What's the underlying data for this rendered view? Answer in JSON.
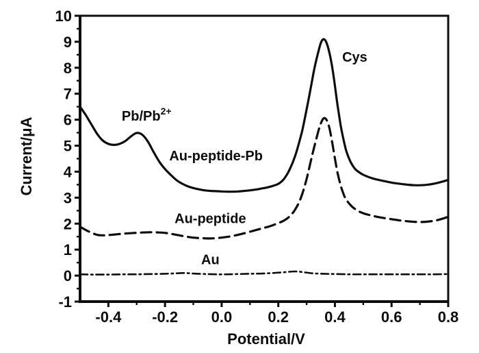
{
  "figure": {
    "background": "#ffffff",
    "ink_color": "#0d0d0d"
  },
  "chart_data": {
    "type": "line",
    "title": "",
    "xlabel": "Potential/V",
    "ylabel": "Current/μA",
    "xlim": [
      -0.5,
      0.8
    ],
    "ylim": [
      -1,
      10
    ],
    "grid": false,
    "frame": true,
    "legend_position": "none (inline curve labels)",
    "x_major_ticks": [
      -0.4,
      -0.2,
      0.0,
      0.2,
      0.4,
      0.6,
      0.8
    ],
    "x_tick_labels": [
      "-0.4",
      "-0.2",
      "0.0",
      "0.2",
      "0.4",
      "0.6",
      "0.8"
    ],
    "x_minor_ticks": [
      -0.3,
      -0.1,
      0.1,
      0.3,
      0.5,
      0.7
    ],
    "y_major_ticks": [
      -1,
      0,
      1,
      2,
      3,
      4,
      5,
      6,
      7,
      8,
      9,
      10
    ],
    "y_tick_labels": [
      "-1",
      "0",
      "1",
      "2",
      "3",
      "4",
      "5",
      "6",
      "7",
      "8",
      "9",
      "10"
    ],
    "y_minor_ticks": [
      -0.5,
      0.5,
      1.5,
      2.5,
      3.5,
      4.5,
      5.5,
      6.5,
      7.5,
      8.5,
      9.5
    ],
    "series": [
      {
        "name": "Au-peptide-Pb",
        "line_style": "solid",
        "stroke_width": 3.2,
        "peaks": [
          {
            "label": "Pb/Pb2+",
            "x": -0.3,
            "y": 5.5
          },
          {
            "label": "Cys",
            "x": 0.36,
            "y": 9.1
          }
        ],
        "points": [
          [
            -0.5,
            6.5
          ],
          [
            -0.48,
            6.18
          ],
          [
            -0.46,
            5.82
          ],
          [
            -0.44,
            5.46
          ],
          [
            -0.42,
            5.2
          ],
          [
            -0.4,
            5.07
          ],
          [
            -0.38,
            5.03
          ],
          [
            -0.36,
            5.07
          ],
          [
            -0.34,
            5.18
          ],
          [
            -0.32,
            5.36
          ],
          [
            -0.3,
            5.49
          ],
          [
            -0.28,
            5.42
          ],
          [
            -0.26,
            5.15
          ],
          [
            -0.24,
            4.75
          ],
          [
            -0.22,
            4.38
          ],
          [
            -0.2,
            4.1
          ],
          [
            -0.18,
            3.88
          ],
          [
            -0.16,
            3.68
          ],
          [
            -0.14,
            3.54
          ],
          [
            -0.12,
            3.44
          ],
          [
            -0.1,
            3.37
          ],
          [
            -0.08,
            3.32
          ],
          [
            -0.06,
            3.28
          ],
          [
            -0.04,
            3.26
          ],
          [
            -0.02,
            3.25
          ],
          [
            0.0,
            3.24
          ],
          [
            0.02,
            3.23
          ],
          [
            0.04,
            3.23
          ],
          [
            0.06,
            3.24
          ],
          [
            0.08,
            3.26
          ],
          [
            0.1,
            3.28
          ],
          [
            0.12,
            3.31
          ],
          [
            0.14,
            3.35
          ],
          [
            0.16,
            3.39
          ],
          [
            0.18,
            3.45
          ],
          [
            0.2,
            3.53
          ],
          [
            0.22,
            3.72
          ],
          [
            0.24,
            4.08
          ],
          [
            0.26,
            4.62
          ],
          [
            0.28,
            5.38
          ],
          [
            0.29,
            5.85
          ],
          [
            0.3,
            6.4
          ],
          [
            0.31,
            6.95
          ],
          [
            0.32,
            7.55
          ],
          [
            0.33,
            8.1
          ],
          [
            0.34,
            8.55
          ],
          [
            0.35,
            8.95
          ],
          [
            0.36,
            9.1
          ],
          [
            0.37,
            8.97
          ],
          [
            0.38,
            8.6
          ],
          [
            0.39,
            8.05
          ],
          [
            0.4,
            7.3
          ],
          [
            0.41,
            6.5
          ],
          [
            0.42,
            5.8
          ],
          [
            0.43,
            5.25
          ],
          [
            0.44,
            4.8
          ],
          [
            0.45,
            4.5
          ],
          [
            0.46,
            4.28
          ],
          [
            0.47,
            4.12
          ],
          [
            0.48,
            4.02
          ],
          [
            0.5,
            3.88
          ],
          [
            0.53,
            3.75
          ],
          [
            0.56,
            3.67
          ],
          [
            0.6,
            3.58
          ],
          [
            0.64,
            3.52
          ],
          [
            0.68,
            3.48
          ],
          [
            0.72,
            3.49
          ],
          [
            0.76,
            3.56
          ],
          [
            0.8,
            3.68
          ]
        ]
      },
      {
        "name": "Au-peptide",
        "line_style": "dashed",
        "stroke_width": 3.2,
        "peaks": [
          {
            "label": "Cys",
            "x": 0.36,
            "y": 6.05
          }
        ],
        "points": [
          [
            -0.5,
            1.88
          ],
          [
            -0.47,
            1.7
          ],
          [
            -0.44,
            1.57
          ],
          [
            -0.42,
            1.55
          ],
          [
            -0.4,
            1.56
          ],
          [
            -0.37,
            1.59
          ],
          [
            -0.34,
            1.62
          ],
          [
            -0.31,
            1.64
          ],
          [
            -0.28,
            1.66
          ],
          [
            -0.25,
            1.67
          ],
          [
            -0.22,
            1.66
          ],
          [
            -0.19,
            1.63
          ],
          [
            -0.16,
            1.57
          ],
          [
            -0.13,
            1.51
          ],
          [
            -0.1,
            1.46
          ],
          [
            -0.07,
            1.44
          ],
          [
            -0.04,
            1.43
          ],
          [
            -0.01,
            1.45
          ],
          [
            0.02,
            1.49
          ],
          [
            0.05,
            1.55
          ],
          [
            0.08,
            1.63
          ],
          [
            0.11,
            1.72
          ],
          [
            0.14,
            1.81
          ],
          [
            0.17,
            1.9
          ],
          [
            0.2,
            2.02
          ],
          [
            0.22,
            2.12
          ],
          [
            0.24,
            2.28
          ],
          [
            0.26,
            2.55
          ],
          [
            0.28,
            3.0
          ],
          [
            0.3,
            3.72
          ],
          [
            0.32,
            4.65
          ],
          [
            0.34,
            5.5
          ],
          [
            0.35,
            5.85
          ],
          [
            0.36,
            6.05
          ],
          [
            0.37,
            6.0
          ],
          [
            0.38,
            5.7
          ],
          [
            0.39,
            5.15
          ],
          [
            0.4,
            4.5
          ],
          [
            0.41,
            3.92
          ],
          [
            0.42,
            3.48
          ],
          [
            0.43,
            3.15
          ],
          [
            0.44,
            2.92
          ],
          [
            0.46,
            2.66
          ],
          [
            0.48,
            2.5
          ],
          [
            0.5,
            2.4
          ],
          [
            0.53,
            2.31
          ],
          [
            0.56,
            2.24
          ],
          [
            0.6,
            2.17
          ],
          [
            0.64,
            2.11
          ],
          [
            0.68,
            2.07
          ],
          [
            0.72,
            2.07
          ],
          [
            0.76,
            2.13
          ],
          [
            0.8,
            2.26
          ]
        ]
      },
      {
        "name": "Au",
        "line_style": "dashdot",
        "stroke_width": 2.6,
        "peaks": [],
        "points": [
          [
            -0.5,
            0.05
          ],
          [
            -0.45,
            0.04
          ],
          [
            -0.4,
            0.04
          ],
          [
            -0.35,
            0.05
          ],
          [
            -0.3,
            0.05
          ],
          [
            -0.25,
            0.06
          ],
          [
            -0.2,
            0.07
          ],
          [
            -0.16,
            0.09
          ],
          [
            -0.13,
            0.1
          ],
          [
            -0.1,
            0.08
          ],
          [
            -0.06,
            0.06
          ],
          [
            -0.02,
            0.05
          ],
          [
            0.02,
            0.05
          ],
          [
            0.06,
            0.06
          ],
          [
            0.1,
            0.07
          ],
          [
            0.14,
            0.08
          ],
          [
            0.18,
            0.1
          ],
          [
            0.22,
            0.13
          ],
          [
            0.26,
            0.16
          ],
          [
            0.29,
            0.13
          ],
          [
            0.32,
            0.09
          ],
          [
            0.36,
            0.07
          ],
          [
            0.4,
            0.06
          ],
          [
            0.45,
            0.05
          ],
          [
            0.5,
            0.05
          ],
          [
            0.55,
            0.05
          ],
          [
            0.6,
            0.05
          ],
          [
            0.65,
            0.05
          ],
          [
            0.7,
            0.05
          ],
          [
            0.75,
            0.05
          ],
          [
            0.8,
            0.06
          ]
        ]
      }
    ],
    "annotations": [
      {
        "text": "Pb/Pb",
        "sup": "2+",
        "x": -0.265,
        "y": 6.15
      },
      {
        "text": "Au-peptide-Pb",
        "sup": "",
        "x": -0.02,
        "y": 4.62
      },
      {
        "text": "Cys",
        "sup": "",
        "x": 0.47,
        "y": 8.42
      },
      {
        "text": "Au-peptide",
        "sup": "",
        "x": -0.04,
        "y": 2.2
      },
      {
        "text": "Au",
        "sup": "",
        "x": -0.04,
        "y": 0.62
      }
    ]
  }
}
